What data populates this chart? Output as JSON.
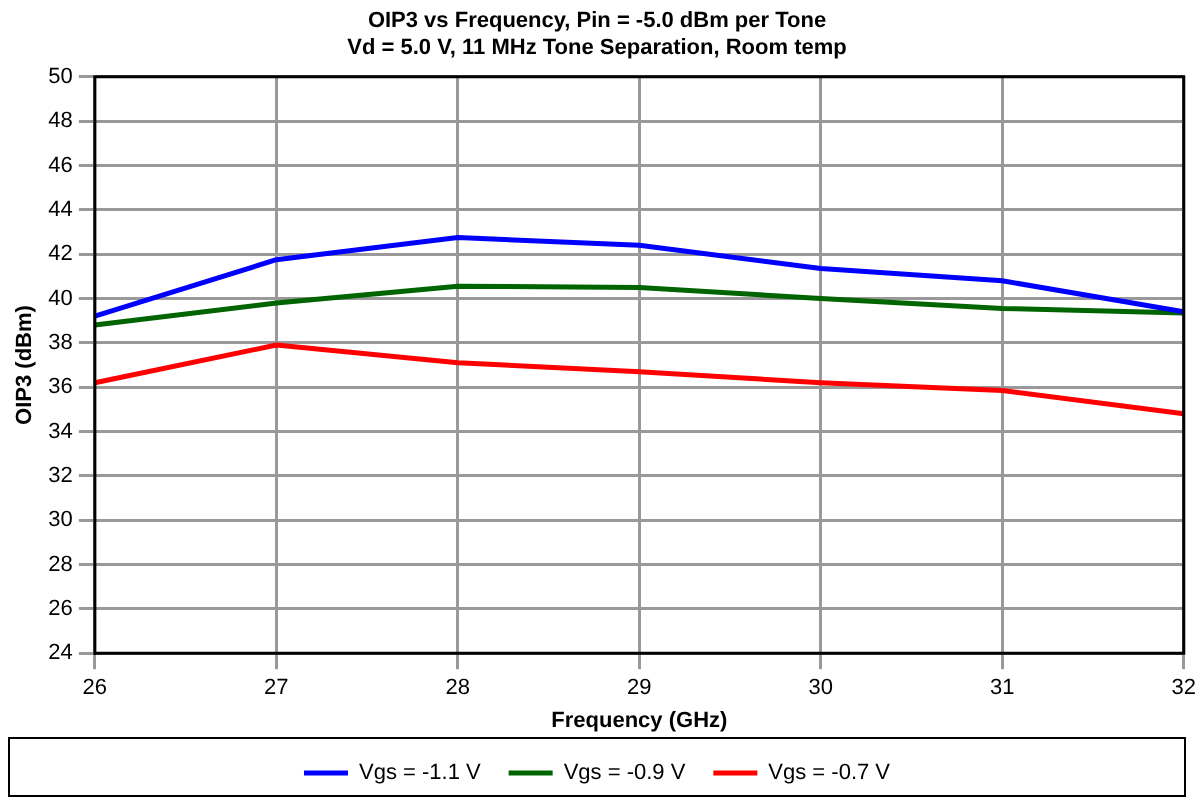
{
  "chart_data": {
    "type": "line",
    "title": [
      "OIP3 vs Frequency, Pin = -5.0 dBm per Tone",
      "Vd = 5.0 V, 11 MHz Tone Separation, Room temp"
    ],
    "xlabel": "Frequency (GHz)",
    "ylabel": "OIP3 (dBm)",
    "x": [
      26,
      27,
      28,
      29,
      30,
      31,
      32
    ],
    "series": [
      {
        "name": "Vgs = -1.1 V",
        "color": "#0000ff",
        "values": [
          39.2,
          41.75,
          42.75,
          42.4,
          41.35,
          40.8,
          39.4
        ]
      },
      {
        "name": "Vgs = -0.9 V",
        "color": "#006400",
        "values": [
          38.8,
          39.8,
          40.55,
          40.5,
          40.0,
          39.55,
          39.35
        ]
      },
      {
        "name": "Vgs = -0.7 V",
        "color": "#ff0000",
        "values": [
          36.2,
          37.9,
          37.1,
          36.7,
          36.2,
          35.85,
          34.8
        ]
      }
    ],
    "xlim": [
      26,
      32
    ],
    "xticks": [
      26,
      27,
      28,
      29,
      30,
      31,
      32
    ],
    "ylim": [
      24,
      50
    ],
    "yticks": [
      24,
      26,
      28,
      30,
      32,
      34,
      36,
      38,
      40,
      42,
      44,
      46,
      48,
      50
    ],
    "grid": true,
    "legend": "bottom",
    "marker": "none",
    "line_style": "solid"
  }
}
